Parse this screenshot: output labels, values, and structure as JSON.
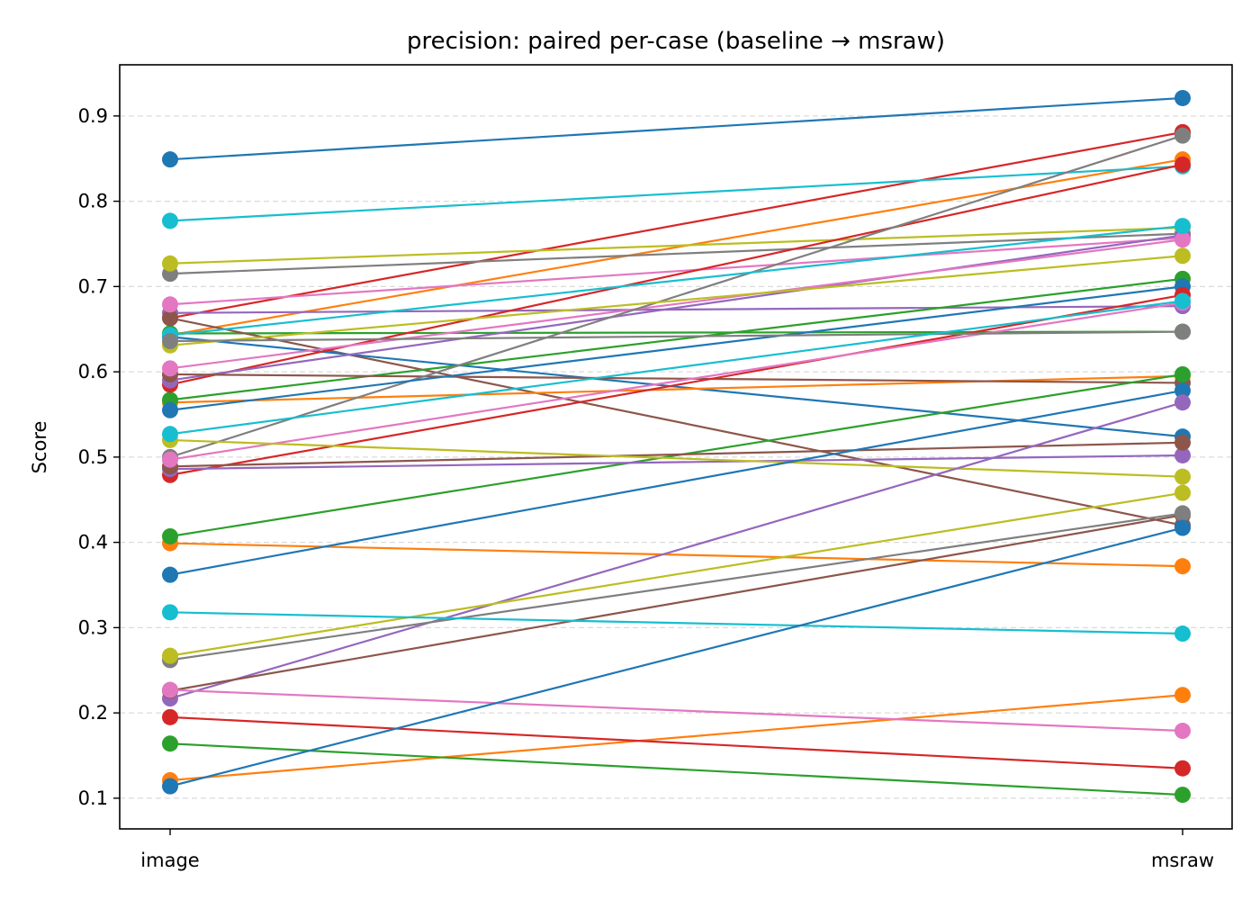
{
  "chart_data": {
    "type": "line",
    "title": "precision: paired per-case (baseline → msraw)",
    "xlabel": "",
    "ylabel": "Score",
    "categories": [
      "image",
      "msraw"
    ],
    "ylim": [
      0.064,
      0.96
    ],
    "yticks": [
      0.1,
      0.2,
      0.3,
      0.4,
      0.5,
      0.6,
      0.7,
      0.8,
      0.9
    ],
    "ytick_labels": [
      "0.1",
      "0.2",
      "0.3",
      "0.4",
      "0.5",
      "0.6",
      "0.7",
      "0.8",
      "0.9"
    ],
    "grid": "horizontal dashed",
    "series": [
      {
        "color": "#1f77b4",
        "values": [
          0.849,
          0.921
        ]
      },
      {
        "color": "#ff7f0e",
        "values": [
          0.643,
          0.849
        ]
      },
      {
        "color": "#2ca02c",
        "values": [
          0.645,
          0.647
        ]
      },
      {
        "color": "#d62728",
        "values": [
          0.663,
          0.881
        ]
      },
      {
        "color": "#9467bd",
        "values": [
          0.669,
          0.677
        ]
      },
      {
        "color": "#8c564b",
        "values": [
          0.663,
          0.42
        ]
      },
      {
        "color": "#e377c2",
        "values": [
          0.679,
          0.757
        ]
      },
      {
        "color": "#7f7f7f",
        "values": [
          0.715,
          0.762
        ]
      },
      {
        "color": "#bcbd22",
        "values": [
          0.727,
          0.769
        ]
      },
      {
        "color": "#17becf",
        "values": [
          0.777,
          0.841
        ]
      },
      {
        "color": "#1f77b4",
        "values": [
          0.641,
          0.524
        ]
      },
      {
        "color": "#ff7f0e",
        "values": [
          0.564,
          0.595
        ]
      },
      {
        "color": "#2ca02c",
        "values": [
          0.567,
          0.709
        ]
      },
      {
        "color": "#d62728",
        "values": [
          0.585,
          0.843
        ]
      },
      {
        "color": "#9467bd",
        "values": [
          0.59,
          0.76
        ]
      },
      {
        "color": "#8c564b",
        "values": [
          0.597,
          0.587
        ]
      },
      {
        "color": "#e377c2",
        "values": [
          0.604,
          0.755
        ]
      },
      {
        "color": "#7f7f7f",
        "values": [
          0.5,
          0.877
        ]
      },
      {
        "color": "#bcbd22",
        "values": [
          0.631,
          0.736
        ]
      },
      {
        "color": "#17becf",
        "values": [
          0.643,
          0.771
        ]
      },
      {
        "color": "#1f77b4",
        "values": [
          0.555,
          0.7
        ]
      },
      {
        "color": "#ff7f0e",
        "values": [
          0.399,
          0.372
        ]
      },
      {
        "color": "#2ca02c",
        "values": [
          0.407,
          0.597
        ]
      },
      {
        "color": "#d62728",
        "values": [
          0.479,
          0.69
        ]
      },
      {
        "color": "#9467bd",
        "values": [
          0.486,
          0.502
        ]
      },
      {
        "color": "#8c564b",
        "values": [
          0.489,
          0.517
        ]
      },
      {
        "color": "#e377c2",
        "values": [
          0.497,
          0.681
        ]
      },
      {
        "color": "#7f7f7f",
        "values": [
          0.636,
          0.647
        ]
      },
      {
        "color": "#bcbd22",
        "values": [
          0.52,
          0.477
        ]
      },
      {
        "color": "#17becf",
        "values": [
          0.527,
          0.683
        ]
      },
      {
        "color": "#1f77b4",
        "values": [
          0.362,
          0.578
        ]
      },
      {
        "color": "#ff7f0e",
        "values": [
          0.121,
          0.221
        ]
      },
      {
        "color": "#2ca02c",
        "values": [
          0.164,
          0.104
        ]
      },
      {
        "color": "#d62728",
        "values": [
          0.195,
          0.135
        ]
      },
      {
        "color": "#9467bd",
        "values": [
          0.217,
          0.564
        ]
      },
      {
        "color": "#8c564b",
        "values": [
          0.226,
          0.432
        ]
      },
      {
        "color": "#e377c2",
        "values": [
          0.227,
          0.179
        ]
      },
      {
        "color": "#7f7f7f",
        "values": [
          0.262,
          0.434
        ]
      },
      {
        "color": "#bcbd22",
        "values": [
          0.267,
          0.458
        ]
      },
      {
        "color": "#17becf",
        "values": [
          0.318,
          0.293
        ]
      },
      {
        "color": "#1f77b4",
        "values": [
          0.114,
          0.417
        ]
      }
    ]
  }
}
